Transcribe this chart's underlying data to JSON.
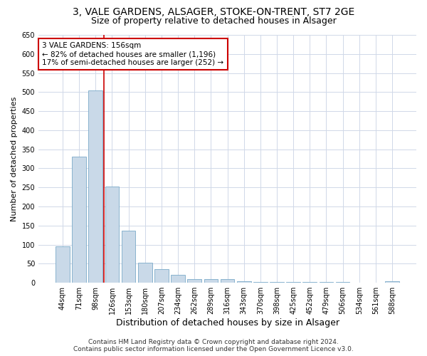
{
  "title1": "3, VALE GARDENS, ALSAGER, STOKE-ON-TRENT, ST7 2GE",
  "title2": "Size of property relative to detached houses in Alsager",
  "xlabel": "Distribution of detached houses by size in Alsager",
  "ylabel": "Number of detached properties",
  "categories": [
    "44sqm",
    "71sqm",
    "98sqm",
    "126sqm",
    "153sqm",
    "180sqm",
    "207sqm",
    "234sqm",
    "262sqm",
    "289sqm",
    "316sqm",
    "343sqm",
    "370sqm",
    "398sqm",
    "425sqm",
    "452sqm",
    "479sqm",
    "506sqm",
    "534sqm",
    "561sqm",
    "588sqm"
  ],
  "values": [
    95,
    330,
    505,
    252,
    137,
    53,
    36,
    20,
    9,
    10,
    10,
    5,
    2,
    2,
    2,
    2,
    2,
    2,
    1,
    1,
    5
  ],
  "bar_color": "#c9d9e8",
  "bar_edge_color": "#7aaac8",
  "annotation_text": "3 VALE GARDENS: 156sqm\n← 82% of detached houses are smaller (1,196)\n17% of semi-detached houses are larger (252) →",
  "annotation_box_color": "#ffffff",
  "annotation_box_edge_color": "#cc0000",
  "vline_color": "#cc0000",
  "vline_x": 2.5,
  "ylim": [
    0,
    650
  ],
  "yticks": [
    0,
    50,
    100,
    150,
    200,
    250,
    300,
    350,
    400,
    450,
    500,
    550,
    600,
    650
  ],
  "background_color": "#ffffff",
  "grid_color": "#d0d8e8",
  "footer_text": "Contains HM Land Registry data © Crown copyright and database right 2024.\nContains public sector information licensed under the Open Government Licence v3.0.",
  "title1_fontsize": 10,
  "title2_fontsize": 9,
  "xlabel_fontsize": 9,
  "ylabel_fontsize": 8,
  "tick_fontsize": 7,
  "annotation_fontsize": 7.5,
  "footer_fontsize": 6.5
}
